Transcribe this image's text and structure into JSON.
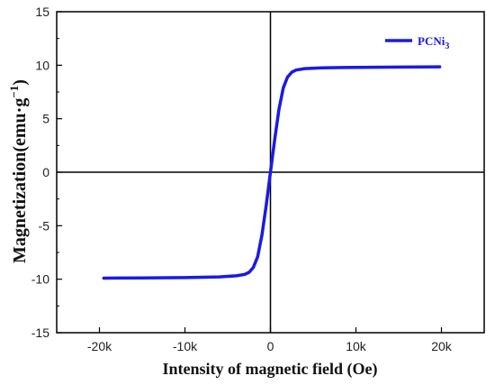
{
  "chart_data": {
    "type": "line",
    "xlabel": "Intensity of magnetic field (Oe)",
    "ylabel": {
      "main": "Magnetization(emu·g",
      "sup": "−1",
      "close": ")"
    },
    "xlim": [
      -25000,
      25000
    ],
    "ylim": [
      -15,
      15
    ],
    "x_ticks": [
      -20000,
      -10000,
      0,
      10000,
      20000
    ],
    "x_tick_labels": [
      "-20k",
      "-10k",
      "0",
      "10k",
      "20k"
    ],
    "y_ticks": [
      -15,
      -10,
      -5,
      0,
      5,
      10,
      15
    ],
    "y_tick_labels": [
      "-15",
      "-10",
      "-5",
      "0",
      "5",
      "10",
      "15"
    ],
    "grid": false,
    "zero_lines": true,
    "legend_placement": "top-right",
    "series": [
      {
        "name": "PCNi",
        "name_subscript": "3",
        "color": "#1a1ae6",
        "x": [
          -19500,
          -15000,
          -10000,
          -6000,
          -4000,
          -3000,
          -2500,
          -2000,
          -1500,
          -1000,
          -500,
          0,
          500,
          1000,
          1500,
          2000,
          2500,
          3000,
          4000,
          6000,
          10000,
          15000,
          19800
        ],
        "y": [
          -9.9,
          -9.88,
          -9.85,
          -9.78,
          -9.68,
          -9.55,
          -9.35,
          -8.9,
          -7.9,
          -5.9,
          -3.1,
          0,
          3.1,
          5.9,
          7.9,
          8.9,
          9.35,
          9.55,
          9.68,
          9.75,
          9.8,
          9.83,
          9.85
        ]
      }
    ]
  }
}
